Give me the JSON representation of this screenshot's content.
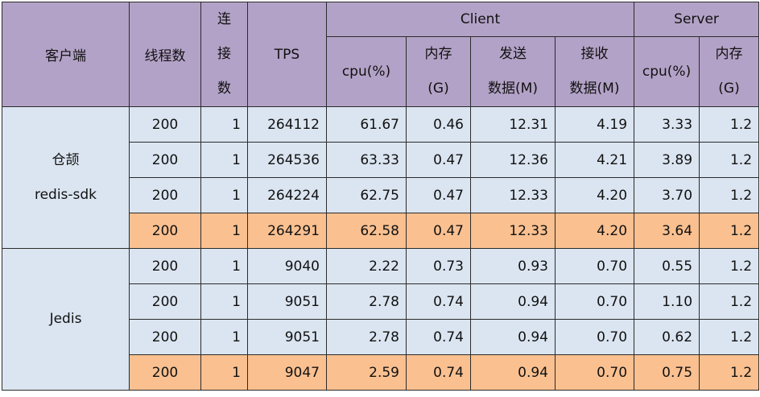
{
  "header": {
    "client_col": "客户端",
    "threads": "线程数",
    "connections": [
      "连",
      "接",
      "数"
    ],
    "tps": "TPS",
    "client_group": "Client",
    "server_group": "Server",
    "client_cpu": "cpu(%)",
    "client_mem": [
      "内存",
      "(G)"
    ],
    "client_send": [
      "发送",
      "数据(M)"
    ],
    "client_recv": [
      "接收",
      "数据(M)"
    ],
    "server_cpu": "cpu(%)",
    "server_mem": [
      "内存",
      "(G)"
    ]
  },
  "groups": [
    {
      "name_lines": [
        "仓颉",
        "redis-sdk"
      ],
      "rows": [
        {
          "threads": "200",
          "connections": "1",
          "tps": "264112",
          "client_cpu": "61.67",
          "client_mem": "0.46",
          "send": "12.31",
          "recv": "4.19",
          "server_cpu": "3.33",
          "server_mem": "1.2"
        },
        {
          "threads": "200",
          "connections": "1",
          "tps": "264536",
          "client_cpu": "63.33",
          "client_mem": "0.47",
          "send": "12.36",
          "recv": "4.21",
          "server_cpu": "3.89",
          "server_mem": "1.2"
        },
        {
          "threads": "200",
          "connections": "1",
          "tps": "264224",
          "client_cpu": "62.75",
          "client_mem": "0.47",
          "send": "12.33",
          "recv": "4.20",
          "server_cpu": "3.70",
          "server_mem": "1.2"
        },
        {
          "threads": "200",
          "connections": "1",
          "tps": "264291",
          "client_cpu": "62.58",
          "client_mem": "0.47",
          "send": "12.33",
          "recv": "4.20",
          "server_cpu": "3.64",
          "server_mem": "1.2"
        }
      ]
    },
    {
      "name_lines": [
        "Jedis"
      ],
      "rows": [
        {
          "threads": "200",
          "connections": "1",
          "tps": "9040",
          "client_cpu": "2.22",
          "client_mem": "0.73",
          "send": "0.93",
          "recv": "0.70",
          "server_cpu": "0.55",
          "server_mem": "1.2"
        },
        {
          "threads": "200",
          "connections": "1",
          "tps": "9051",
          "client_cpu": "2.78",
          "client_mem": "0.74",
          "send": "0.94",
          "recv": "0.70",
          "server_cpu": "1.10",
          "server_mem": "1.2"
        },
        {
          "threads": "200",
          "connections": "1",
          "tps": "9051",
          "client_cpu": "2.78",
          "client_mem": "0.74",
          "send": "0.94",
          "recv": "0.70",
          "server_cpu": "0.62",
          "server_mem": "1.2"
        },
        {
          "threads": "200",
          "connections": "1",
          "tps": "9047",
          "client_cpu": "2.59",
          "client_mem": "0.74",
          "send": "0.94",
          "recv": "0.70",
          "server_cpu": "0.75",
          "server_mem": "1.2"
        }
      ]
    }
  ],
  "colors": {
    "header_bg": "#b3a2c7",
    "row_bg": "#dbe5f1",
    "average_row_bg": "#fac090",
    "border": "#2b2b2b"
  }
}
